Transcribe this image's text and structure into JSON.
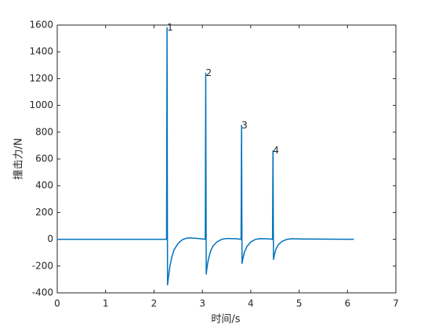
{
  "chart_data": {
    "type": "line",
    "xlabel": "时间/s",
    "ylabel": "撞击力/N",
    "x": [
      0,
      2.25,
      2.26,
      2.27,
      2.28,
      2.3,
      2.33,
      2.37,
      2.42,
      2.5,
      2.6,
      2.7,
      2.85,
      3.0,
      3.06,
      3.07,
      3.08,
      3.1,
      3.13,
      3.17,
      3.22,
      3.3,
      3.4,
      3.5,
      3.7,
      3.8,
      3.81,
      3.82,
      3.84,
      3.87,
      3.92,
      4.0,
      4.1,
      4.2,
      4.4,
      4.45,
      4.46,
      4.47,
      4.49,
      4.52,
      4.57,
      4.65,
      4.75,
      4.85,
      5.1,
      6.13
    ],
    "values": [
      0,
      0,
      0,
      1580,
      -340,
      -280,
      -200,
      -130,
      -75,
      -30,
      0,
      10,
      8,
      3,
      0,
      1240,
      -260,
      -200,
      -140,
      -90,
      -50,
      -20,
      0,
      6,
      4,
      0,
      850,
      -180,
      -140,
      -95,
      -55,
      -20,
      0,
      5,
      3,
      0,
      660,
      -150,
      -115,
      -75,
      -40,
      -15,
      0,
      4,
      2,
      0
    ],
    "color": "#0072bd",
    "annotations": [
      {
        "text": "1",
        "x": 2.27,
        "y": 1580
      },
      {
        "text": "2",
        "x": 3.07,
        "y": 1240
      },
      {
        "text": "3",
        "x": 3.81,
        "y": 850
      },
      {
        "text": "4",
        "x": 4.46,
        "y": 660
      }
    ],
    "xlim": [
      0,
      7
    ],
    "xticks": [
      0,
      1,
      2,
      3,
      4,
      5,
      6,
      7
    ],
    "ylim": [
      -400,
      1600
    ],
    "yticks": [
      -400,
      -200,
      0,
      200,
      400,
      600,
      800,
      1000,
      1200,
      1400,
      1600
    ],
    "grid": false
  }
}
